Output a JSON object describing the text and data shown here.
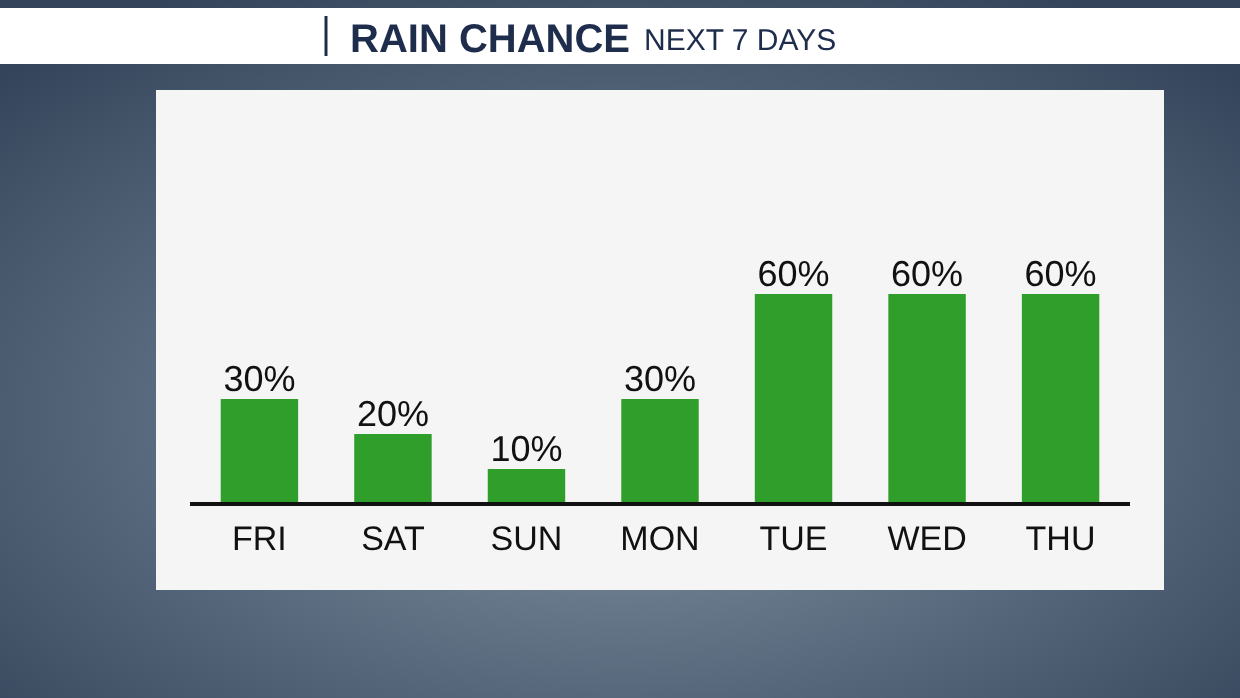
{
  "chart_data": {
    "type": "bar",
    "title": "RAIN CHANCE",
    "subtitle": "NEXT 7 DAYS",
    "categories": [
      "FRI",
      "SAT",
      "SUN",
      "MON",
      "TUE",
      "WED",
      "THU"
    ],
    "values": [
      30,
      20,
      10,
      30,
      60,
      60,
      60
    ],
    "value_labels": [
      "30%",
      "20%",
      "10%",
      "30%",
      "60%",
      "60%",
      "60%"
    ],
    "color": "#2f9e2a"
  }
}
